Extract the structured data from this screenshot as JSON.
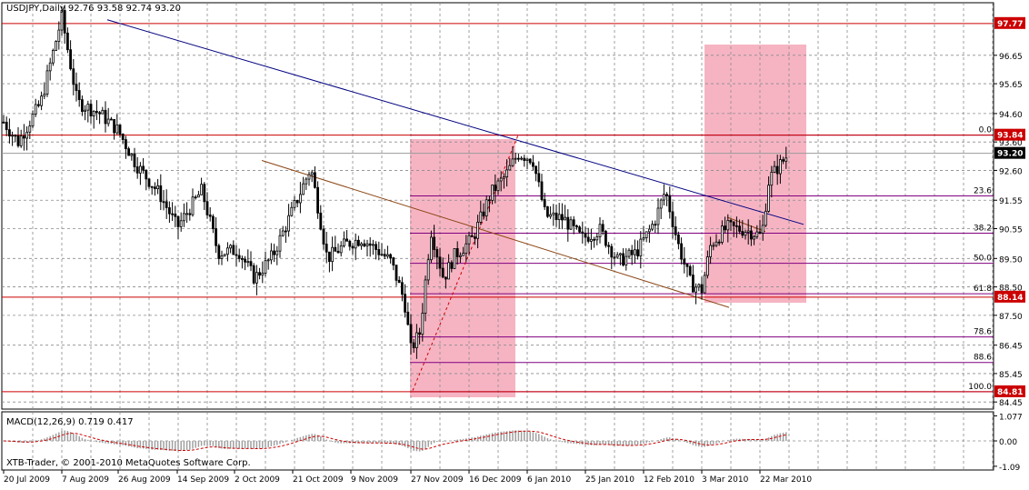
{
  "chart_data": [
    {
      "type": "candlestick",
      "symbol_header": "USDJPY,Daily  92.76 93.58 92.74 93.20",
      "ylim": [
        84.2,
        98.5
      ],
      "y_ticks": [
        "96.65",
        "95.65",
        "94.60",
        "93.60",
        "92.60",
        "91.55",
        "90.55",
        "89.50",
        "88.50",
        "87.50",
        "86.45",
        "85.45",
        "84.45"
      ],
      "x_ticks": [
        "20 Jul 2009",
        "7 Aug 2009",
        "26 Aug 2009",
        "14 Sep 2009",
        "2 Oct 2009",
        "21 Oct 2009",
        "9 Nov 2009",
        "27 Nov 2009",
        "16 Dec 2009",
        "6 Jan 2010",
        "25 Jan 2010",
        "12 Feb 2010",
        "3 Mar 2010",
        "22 Mar 2010"
      ],
      "horizontal_levels": [
        {
          "value": 97.77,
          "label": "97.77",
          "color": "#cc0000"
        },
        {
          "value": 93.84,
          "label": "93.84",
          "color": "#cc0000"
        },
        {
          "value": 88.14,
          "label": "88.14",
          "color": "#cc0000"
        },
        {
          "value": 84.81,
          "label": "84.81",
          "color": "#cc0000"
        }
      ],
      "current_price": {
        "value": 93.2,
        "label": "93.20"
      },
      "fibonacci": {
        "color": "#800080",
        "levels": [
          {
            "label": "0.0",
            "value": 93.84
          },
          {
            "label": "23.6",
            "value": 91.7
          },
          {
            "label": "38.2",
            "value": 90.39
          },
          {
            "label": "50.0",
            "value": 89.33
          },
          {
            "label": "61.8",
            "value": 88.26
          },
          {
            "label": "78.6",
            "value": 86.74
          },
          {
            "label": "88.6",
            "value": 85.84
          },
          {
            "label": "100.0",
            "value": 84.81
          }
        ]
      },
      "highlight_color": "#f4a7b9",
      "series_ohlc": []
    },
    {
      "type": "histogram+line",
      "title": "MACD(12,26,9)  0.719 0.417",
      "ylim": [
        -1.25,
        1.25
      ],
      "y_ticks": [
        "1.077",
        "0.00",
        "-1.09"
      ],
      "signal_color": "#cc0000"
    }
  ],
  "watermark": "XTB-Trader, © 2001-2010 MetaQuotes Software Corp."
}
